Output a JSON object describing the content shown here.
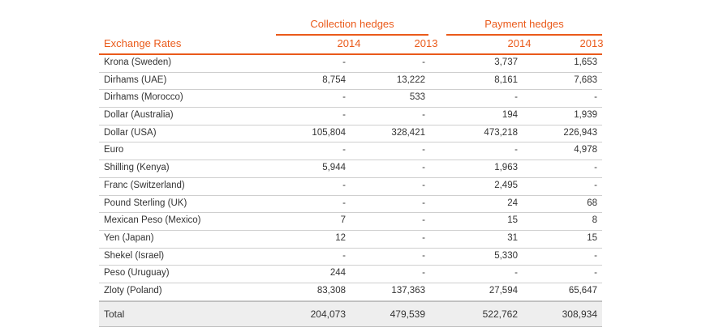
{
  "groups": {
    "collection": "Collection hedges",
    "payment": "Payment hedges"
  },
  "header": {
    "label": "Exchange Rates",
    "c1": "2014",
    "c2": "2013",
    "c3": "2014",
    "c4": "2013"
  },
  "rows": [
    {
      "name": "Krona (Sweden)",
      "v1": "-",
      "v2": "-",
      "v3": "3,737",
      "v4": "1,653"
    },
    {
      "name": "Dirhams (UAE)",
      "v1": "8,754",
      "v2": "13,222",
      "v3": "8,161",
      "v4": "7,683"
    },
    {
      "name": "Dirhams (Morocco)",
      "v1": "-",
      "v2": "533",
      "v3": "-",
      "v4": "-"
    },
    {
      "name": "Dollar (Australia)",
      "v1": "-",
      "v2": "-",
      "v3": "194",
      "v4": "1,939"
    },
    {
      "name": "Dollar (USA)",
      "v1": "105,804",
      "v2": "328,421",
      "v3": "473,218",
      "v4": "226,943"
    },
    {
      "name": "Euro",
      "v1": "-",
      "v2": "-",
      "v3": "-",
      "v4": "4,978"
    },
    {
      "name": "Shilling (Kenya)",
      "v1": "5,944",
      "v2": "-",
      "v3": "1,963",
      "v4": "-"
    },
    {
      "name": "Franc (Switzerland)",
      "v1": "-",
      "v2": "-",
      "v3": "2,495",
      "v4": "-"
    },
    {
      "name": "Pound Sterling (UK)",
      "v1": "-",
      "v2": "-",
      "v3": "24",
      "v4": "68"
    },
    {
      "name": "Mexican Peso (Mexico)",
      "v1": "7",
      "v2": "-",
      "v3": "15",
      "v4": "8"
    },
    {
      "name": "Yen (Japan)",
      "v1": "12",
      "v2": "-",
      "v3": "31",
      "v4": "15"
    },
    {
      "name": "Shekel (Israel)",
      "v1": "-",
      "v2": "-",
      "v3": "5,330",
      "v4": "-"
    },
    {
      "name": "Peso (Uruguay)",
      "v1": "244",
      "v2": "-",
      "v3": "-",
      "v4": "-"
    },
    {
      "name": "Zloty (Poland)",
      "v1": "83,308",
      "v2": "137,363",
      "v3": "27,594",
      "v4": "65,647"
    }
  ],
  "total": {
    "name": "Total",
    "v1": "204,073",
    "v2": "479,539",
    "v3": "522,762",
    "v4": "308,934"
  },
  "colors": {
    "accent": "#ea5a1a",
    "grid": "#cfcfcf",
    "total_bg": "#eeeeee"
  }
}
